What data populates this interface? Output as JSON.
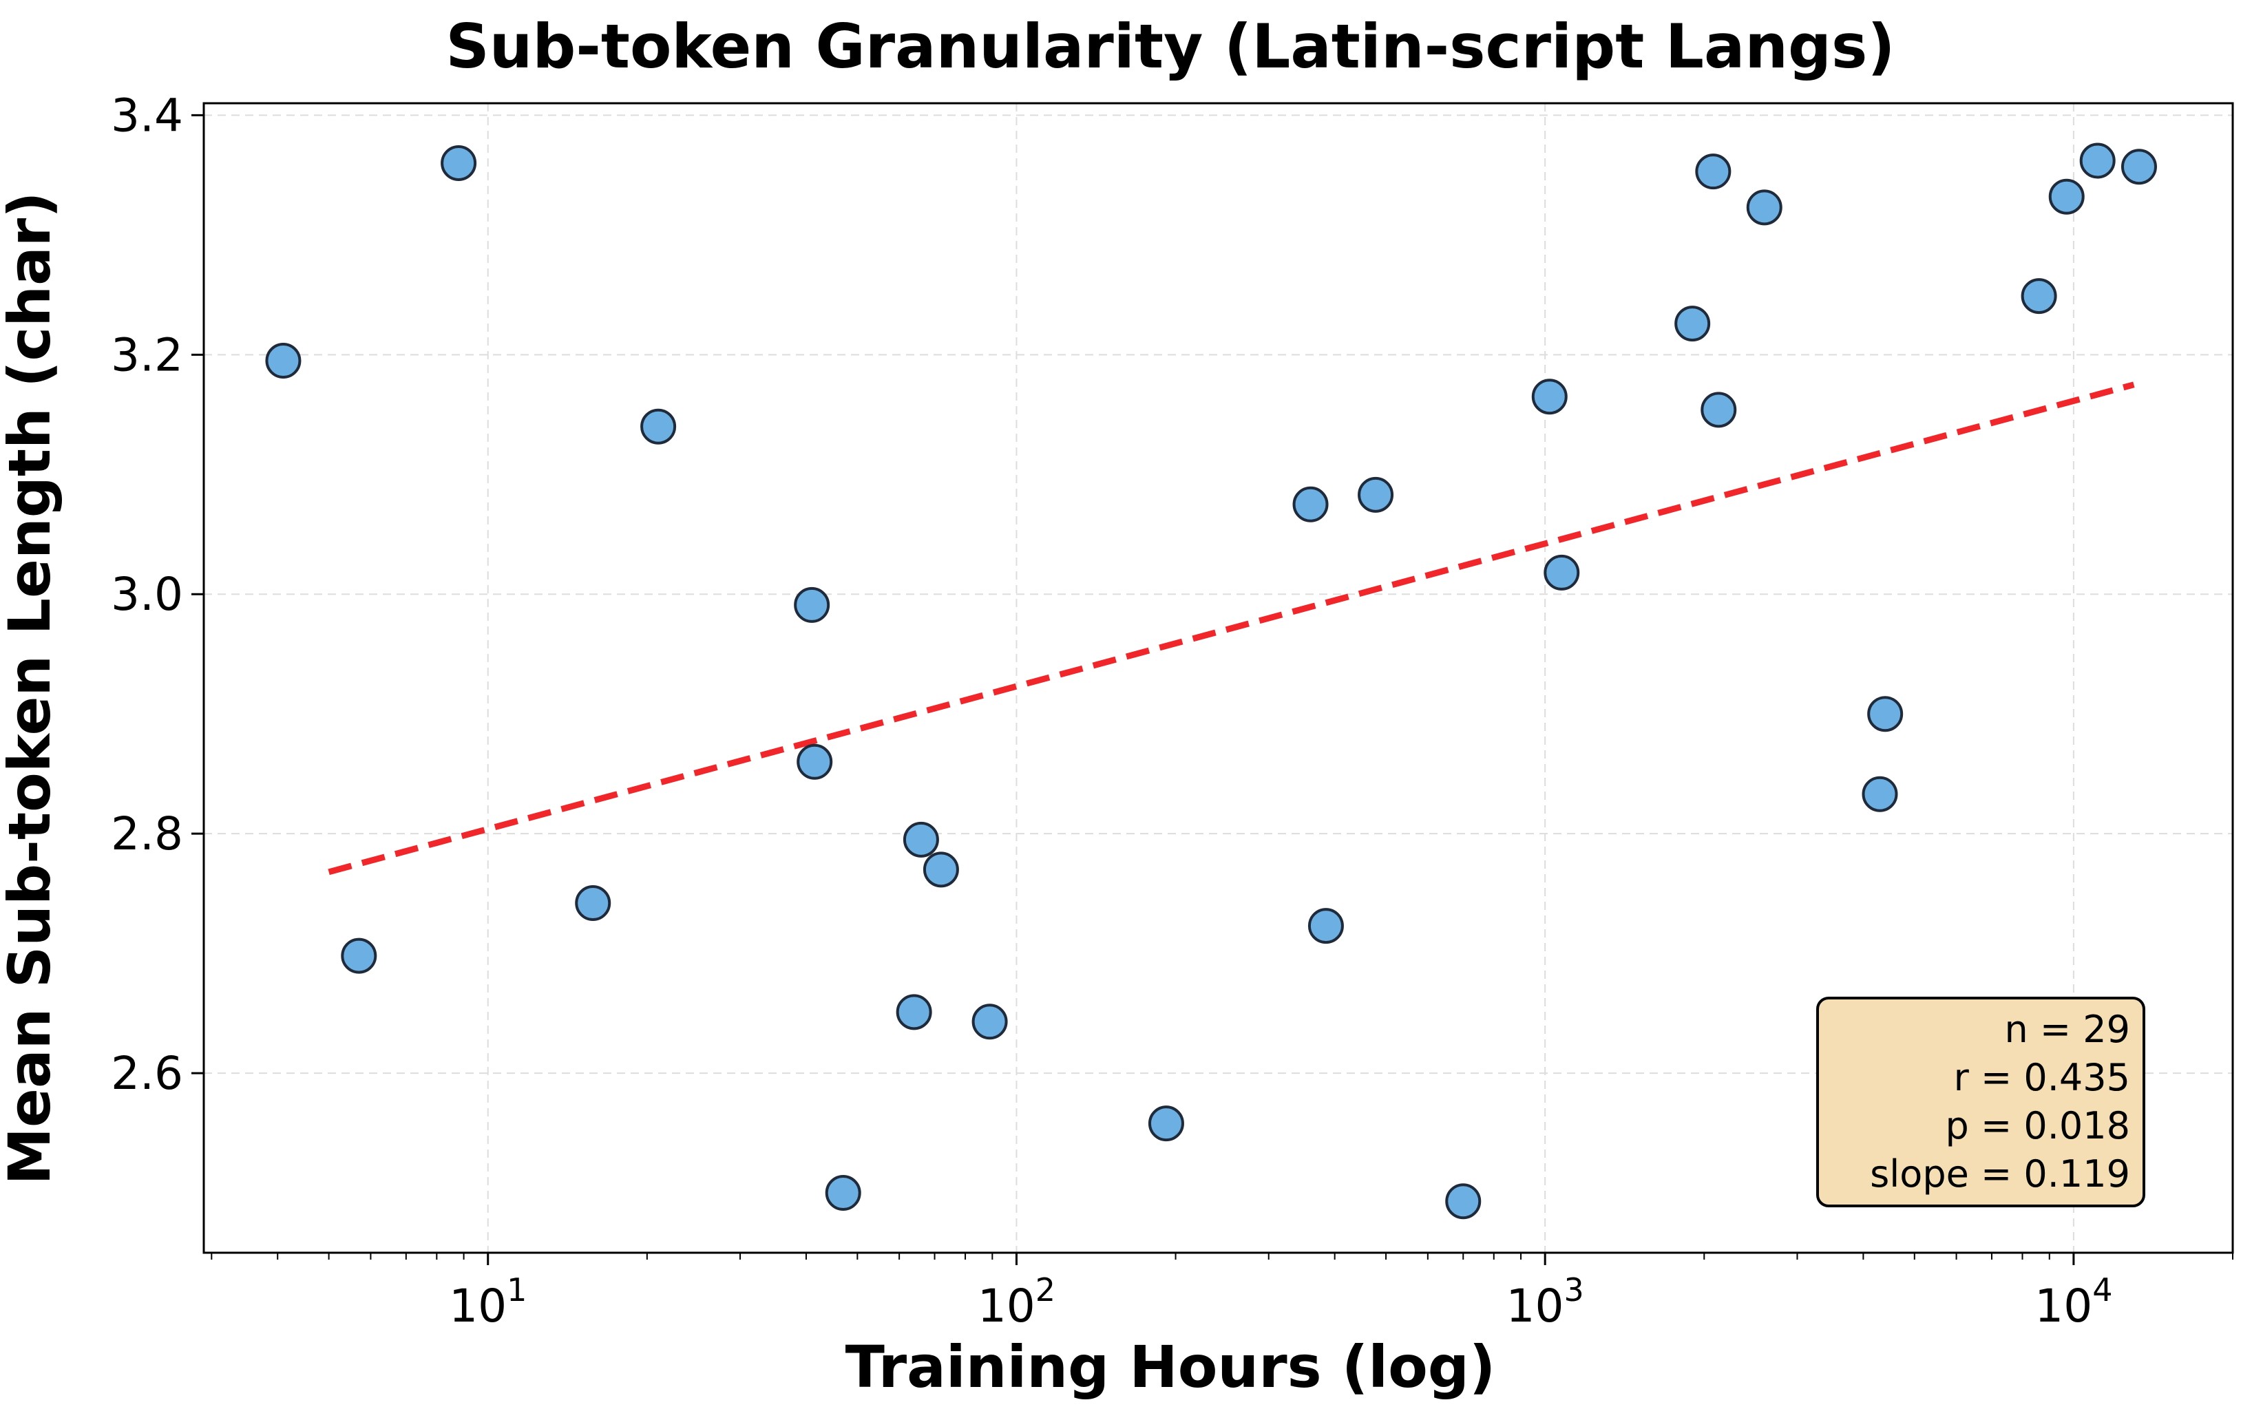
{
  "chart_data": {
    "type": "scatter",
    "title": "Sub-token Granularity (Latin-script Langs)",
    "xlabel": "Training Hours (log)",
    "ylabel": "Mean Sub-token Length (char)",
    "x_scale": "log",
    "xlim": [
      2.9,
      20000
    ],
    "ylim": [
      2.45,
      3.41
    ],
    "x_ticks": [
      {
        "base": "10",
        "exp": "1",
        "value": 10
      },
      {
        "base": "10",
        "exp": "2",
        "value": 100
      },
      {
        "base": "10",
        "exp": "3",
        "value": 1000
      },
      {
        "base": "10",
        "exp": "4",
        "value": 10000
      }
    ],
    "y_ticks": [
      "2.6",
      "2.8",
      "3.0",
      "3.2",
      "3.4"
    ],
    "grid": true,
    "points": {
      "x": [
        4.1,
        5.7,
        8.8,
        15.8,
        21,
        41,
        41.5,
        47,
        64,
        66,
        72,
        89,
        192,
        360,
        385,
        478,
        700,
        1020,
        1075,
        1900,
        2080,
        2130,
        2600,
        4300,
        4400,
        8600,
        9700,
        11100,
        13300
      ],
      "y": [
        3.195,
        2.698,
        3.36,
        2.742,
        3.14,
        2.991,
        2.86,
        2.5,
        2.651,
        2.795,
        2.77,
        2.643,
        2.558,
        3.075,
        2.723,
        3.083,
        2.493,
        3.165,
        3.018,
        3.226,
        3.353,
        3.154,
        3.323,
        2.833,
        2.9,
        3.249,
        3.332,
        3.362,
        3.357
      ]
    },
    "fit_line": {
      "x": [
        5,
        13000
      ],
      "y": [
        2.768,
        3.175
      ]
    },
    "stats": [
      "n = 29",
      "r = 0.435",
      "p = 0.018",
      "slope = 0.119"
    ],
    "colors": {
      "point_fill": "#6cb0e3",
      "point_edge": "#1f2a3a",
      "fit_line": "#f0262a",
      "stats_box_fill": "#f5deb3",
      "grid": "#dddddd"
    }
  }
}
